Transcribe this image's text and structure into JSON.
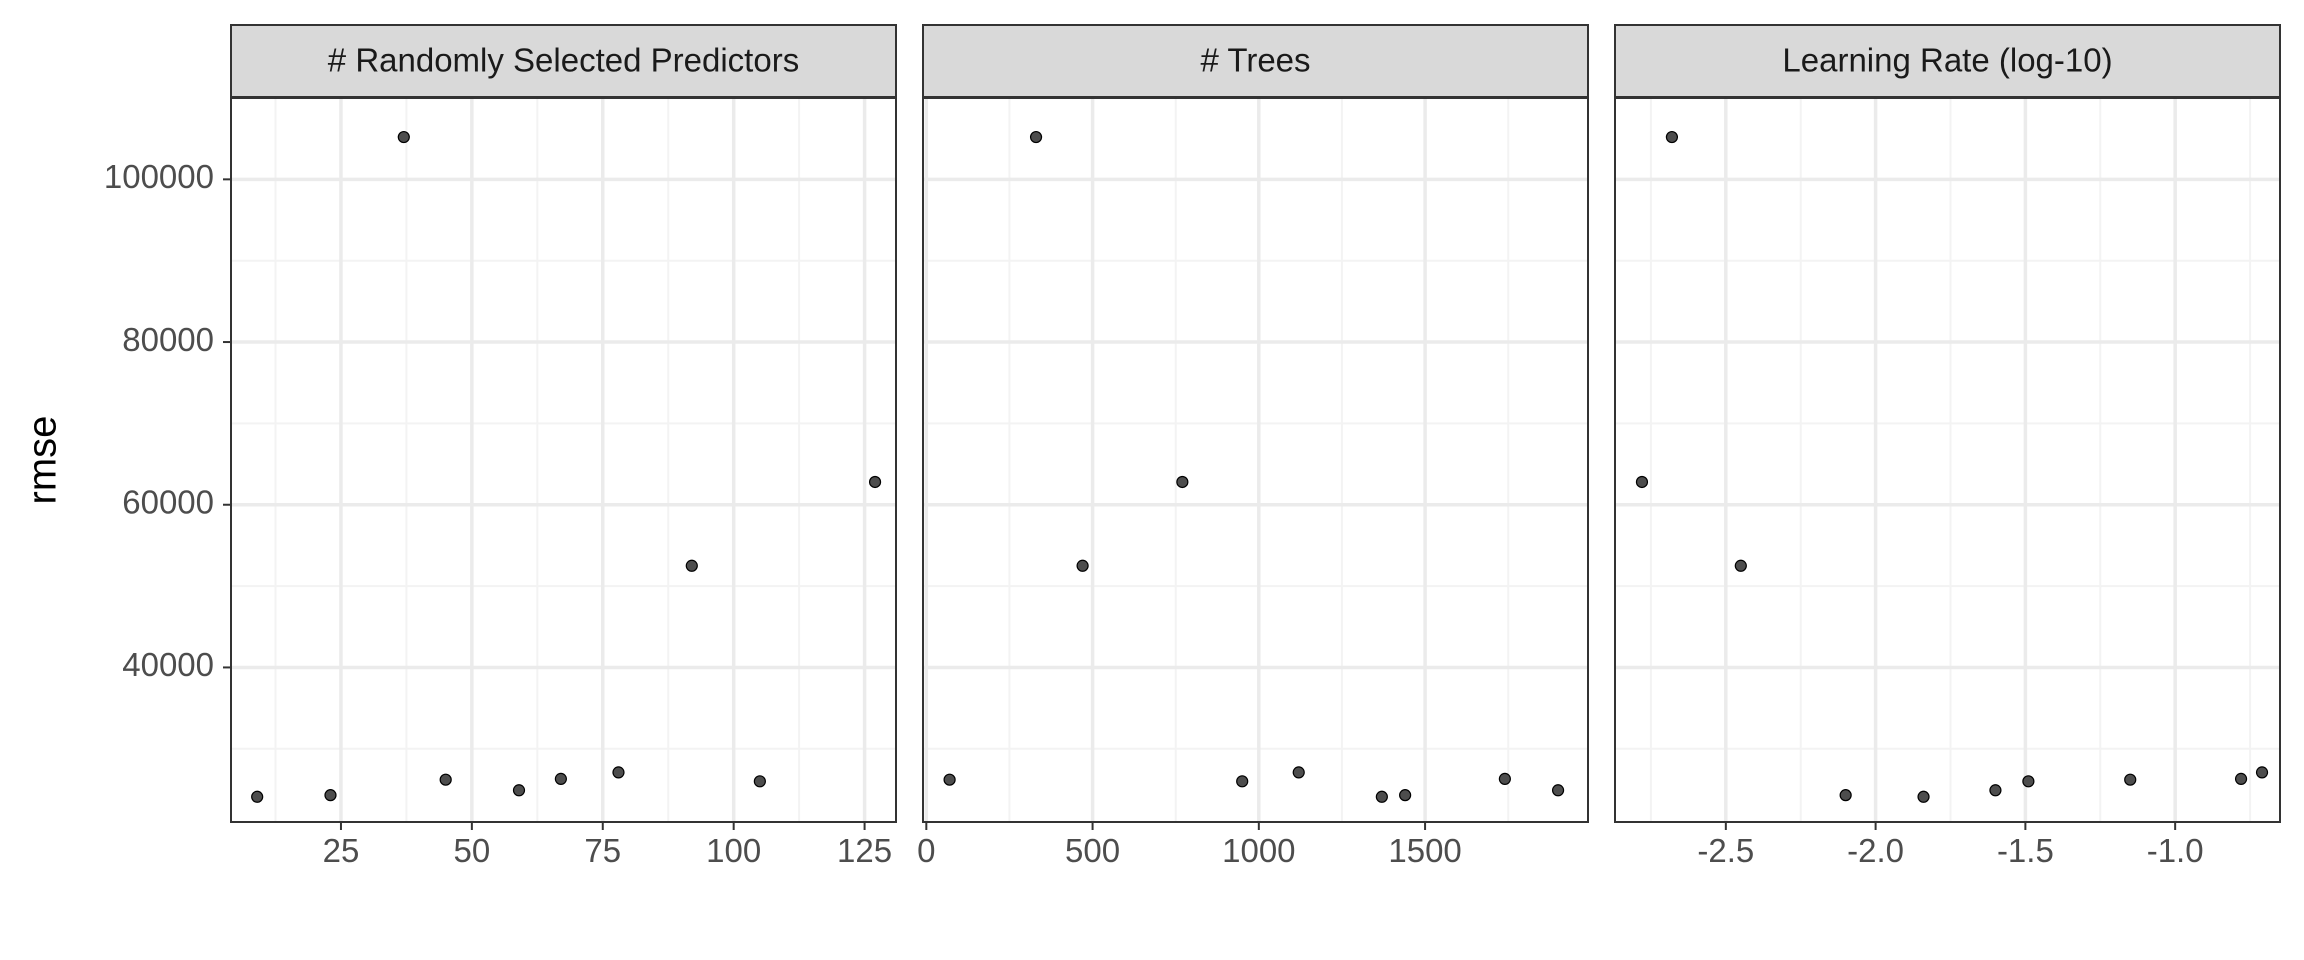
{
  "chart_data": {
    "type": "scatter",
    "ylabel": "rmse",
    "xlabel": "",
    "y_ticks": [
      40000,
      60000,
      80000,
      100000
    ],
    "y_tick_labels": [
      "40000",
      "60000",
      "80000",
      "100000"
    ],
    "ylim": [
      21000,
      110000
    ],
    "grid": true,
    "colors": {
      "point_fill": "#4d4d4d",
      "point_stroke": "#000000",
      "strip_bg": "#d9d9d9",
      "grid_major": "#ebebeb",
      "grid_minor": "#f3f3f3"
    },
    "panels": [
      {
        "title": "# Randomly Selected Predictors",
        "xlim": [
          4,
          131
        ],
        "x_ticks": [
          25,
          50,
          75,
          100,
          125
        ],
        "x_tick_labels": [
          "25",
          "50",
          "75",
          "100",
          "125"
        ],
        "x_minor": [
          12.5,
          37.5,
          62.5,
          87.5,
          112.5
        ],
        "x": [
          9,
          23,
          37,
          45,
          59,
          67,
          78,
          92,
          105,
          127
        ],
        "y": [
          24100,
          24300,
          105200,
          26200,
          24900,
          26300,
          27100,
          52500,
          26000,
          62800
        ]
      },
      {
        "title": "# Trees",
        "xlim": [
          -10,
          1990
        ],
        "x_ticks": [
          0,
          500,
          1000,
          1500
        ],
        "x_tick_labels": [
          "0",
          "500",
          "1000",
          "1500"
        ],
        "x_minor": [
          250,
          750,
          1250,
          1750
        ],
        "x": [
          70,
          330,
          470,
          770,
          950,
          1120,
          1370,
          1440,
          1740,
          1900
        ],
        "y": [
          26200,
          105200,
          52500,
          62800,
          26000,
          27100,
          24100,
          24300,
          26300,
          24900
        ]
      },
      {
        "title": "Learning Rate (log-10)",
        "xlim": [
          -2.87,
          -0.65
        ],
        "x_ticks": [
          -2.5,
          -2.0,
          -1.5,
          -1.0
        ],
        "x_tick_labels": [
          "-2.5",
          "-2.0",
          "-1.5",
          "-1.0"
        ],
        "x_minor": [
          -2.75,
          -2.25,
          -1.75,
          -1.25,
          -0.75
        ],
        "x": [
          -2.78,
          -2.68,
          -2.45,
          -2.1,
          -1.84,
          -1.6,
          -1.49,
          -1.15,
          -0.78,
          -0.71
        ],
        "y": [
          62800,
          105200,
          52500,
          24300,
          24100,
          24900,
          26000,
          26200,
          26300,
          27100
        ]
      }
    ]
  }
}
